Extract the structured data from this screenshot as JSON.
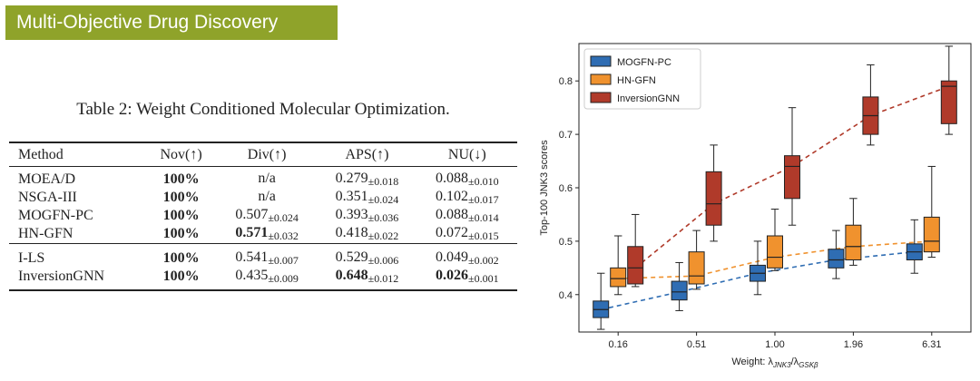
{
  "banner": {
    "title": "Multi-Objective Drug Discovery"
  },
  "table": {
    "caption": "Table 2: Weight Conditioned Molecular Optimization.",
    "headers": [
      "Method",
      "Nov(↑)",
      "Div(↑)",
      "APS(↑)",
      "NU(↓)"
    ],
    "rows": [
      {
        "method": "MOEA/D",
        "nov": "100%",
        "div": "n/a",
        "div_pm": "",
        "aps": "0.279",
        "aps_pm": "±0.018",
        "nu": "0.088",
        "nu_pm": "±0.010"
      },
      {
        "method": "NSGA-III",
        "nov": "100%",
        "div": "n/a",
        "div_pm": "",
        "aps": "0.351",
        "aps_pm": "±0.024",
        "nu": "0.102",
        "nu_pm": "±0.017"
      },
      {
        "method": "MOGFN-PC",
        "nov": "100%",
        "div": "0.507",
        "div_pm": "±0.024",
        "aps": "0.393",
        "aps_pm": "±0.036",
        "nu": "0.088",
        "nu_pm": "±0.014"
      },
      {
        "method": "HN-GFN",
        "nov": "100%",
        "div": "0.571",
        "div_pm": "±0.032",
        "aps": "0.418",
        "aps_pm": "±0.022",
        "nu": "0.072",
        "nu_pm": "±0.015"
      },
      {
        "method": "I-LS",
        "nov": "100%",
        "div": "0.541",
        "div_pm": "±0.007",
        "aps": "0.529",
        "aps_pm": "±0.006",
        "nu": "0.049",
        "nu_pm": "±0.002"
      },
      {
        "method": "InversionGNN",
        "nov": "100%",
        "div": "0.435",
        "div_pm": "±0.009",
        "aps": "0.648",
        "aps_pm": "±0.012",
        "nu": "0.026",
        "nu_pm": "±0.001"
      }
    ]
  },
  "chart_data": {
    "type": "box",
    "xlabel": "Weight: λ_JNK3/λ_GSKβ",
    "xlabel_main": "Weight: λ",
    "xlabel_sub1": "JNK3",
    "xlabel_sep": "/λ",
    "xlabel_sub2": "GSKβ",
    "ylabel": "Top-100 JNK3 scores",
    "categories": [
      "0.16",
      "0.51",
      "1.00",
      "1.96",
      "6.31"
    ],
    "ylim": [
      0.33,
      0.87
    ],
    "yticks": [
      "0.4",
      "0.5",
      "0.6",
      "0.7",
      "0.8"
    ],
    "legend_position": "top-left",
    "series": [
      {
        "name": "MOGFN-PC",
        "color": "#2f6db3",
        "boxes": [
          {
            "min": 0.335,
            "q1": 0.357,
            "median": 0.372,
            "q3": 0.388,
            "max": 0.44
          },
          {
            "min": 0.37,
            "q1": 0.39,
            "median": 0.405,
            "q3": 0.425,
            "max": 0.46
          },
          {
            "min": 0.4,
            "q1": 0.425,
            "median": 0.44,
            "q3": 0.455,
            "max": 0.5
          },
          {
            "min": 0.43,
            "q1": 0.45,
            "median": 0.465,
            "q3": 0.485,
            "max": 0.52
          },
          {
            "min": 0.44,
            "q1": 0.465,
            "median": 0.48,
            "q3": 0.495,
            "max": 0.54
          }
        ]
      },
      {
        "name": "HN-GFN",
        "color": "#f0922e",
        "boxes": [
          {
            "min": 0.4,
            "q1": 0.415,
            "median": 0.43,
            "q3": 0.45,
            "max": 0.51
          },
          {
            "min": 0.41,
            "q1": 0.42,
            "median": 0.435,
            "q3": 0.48,
            "max": 0.52
          },
          {
            "min": 0.445,
            "q1": 0.45,
            "median": 0.47,
            "q3": 0.51,
            "max": 0.56
          },
          {
            "min": 0.455,
            "q1": 0.465,
            "median": 0.49,
            "q3": 0.53,
            "max": 0.58
          },
          {
            "min": 0.47,
            "q1": 0.48,
            "median": 0.5,
            "q3": 0.545,
            "max": 0.64
          }
        ]
      },
      {
        "name": "InversionGNN",
        "color": "#b03a2a",
        "boxes": [
          {
            "min": 0.415,
            "q1": 0.42,
            "median": 0.45,
            "q3": 0.49,
            "max": 0.55
          },
          {
            "min": 0.5,
            "q1": 0.53,
            "median": 0.57,
            "q3": 0.63,
            "max": 0.68
          },
          {
            "min": 0.53,
            "q1": 0.58,
            "median": 0.64,
            "q3": 0.66,
            "max": 0.75
          },
          {
            "min": 0.68,
            "q1": 0.7,
            "median": 0.735,
            "q3": 0.77,
            "max": 0.83
          },
          {
            "min": 0.7,
            "q1": 0.72,
            "median": 0.79,
            "q3": 0.8,
            "max": 0.865
          }
        ]
      }
    ]
  }
}
